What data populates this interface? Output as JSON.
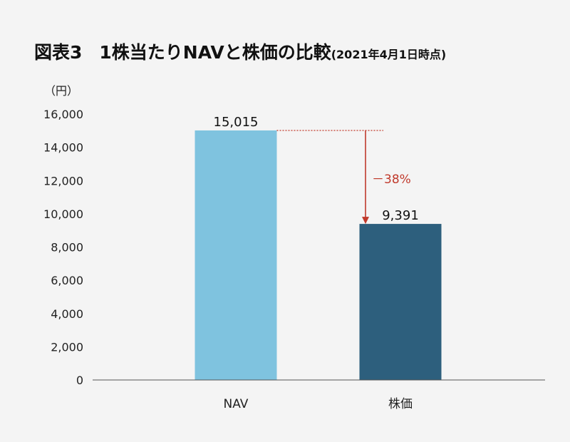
{
  "header": {
    "figure_label": "図表3",
    "title": "1株当たりNAVと株価の比較",
    "note": "(2021年4月1日時点)"
  },
  "chart_data": {
    "type": "bar",
    "title": "1株当たりNAVと株価の比較",
    "unit_label": "（円）",
    "categories": [
      "NAV",
      "株価"
    ],
    "values": [
      15015,
      9391
    ],
    "value_labels": [
      "15,015",
      "9,391"
    ],
    "colors": [
      "#7fc3df",
      "#2d5f7d"
    ],
    "ylim": [
      0,
      16000
    ],
    "yticks": [
      0,
      2000,
      4000,
      6000,
      8000,
      10000,
      12000,
      14000,
      16000
    ],
    "ytick_labels": [
      "0",
      "2,000",
      "4,000",
      "6,000",
      "8,000",
      "10,000",
      "12,000",
      "14,000",
      "16,000"
    ],
    "grid": false,
    "annotation": {
      "text": "－38%",
      "color": "#c0392b",
      "from_category": "NAV",
      "to_category": "株価"
    }
  }
}
